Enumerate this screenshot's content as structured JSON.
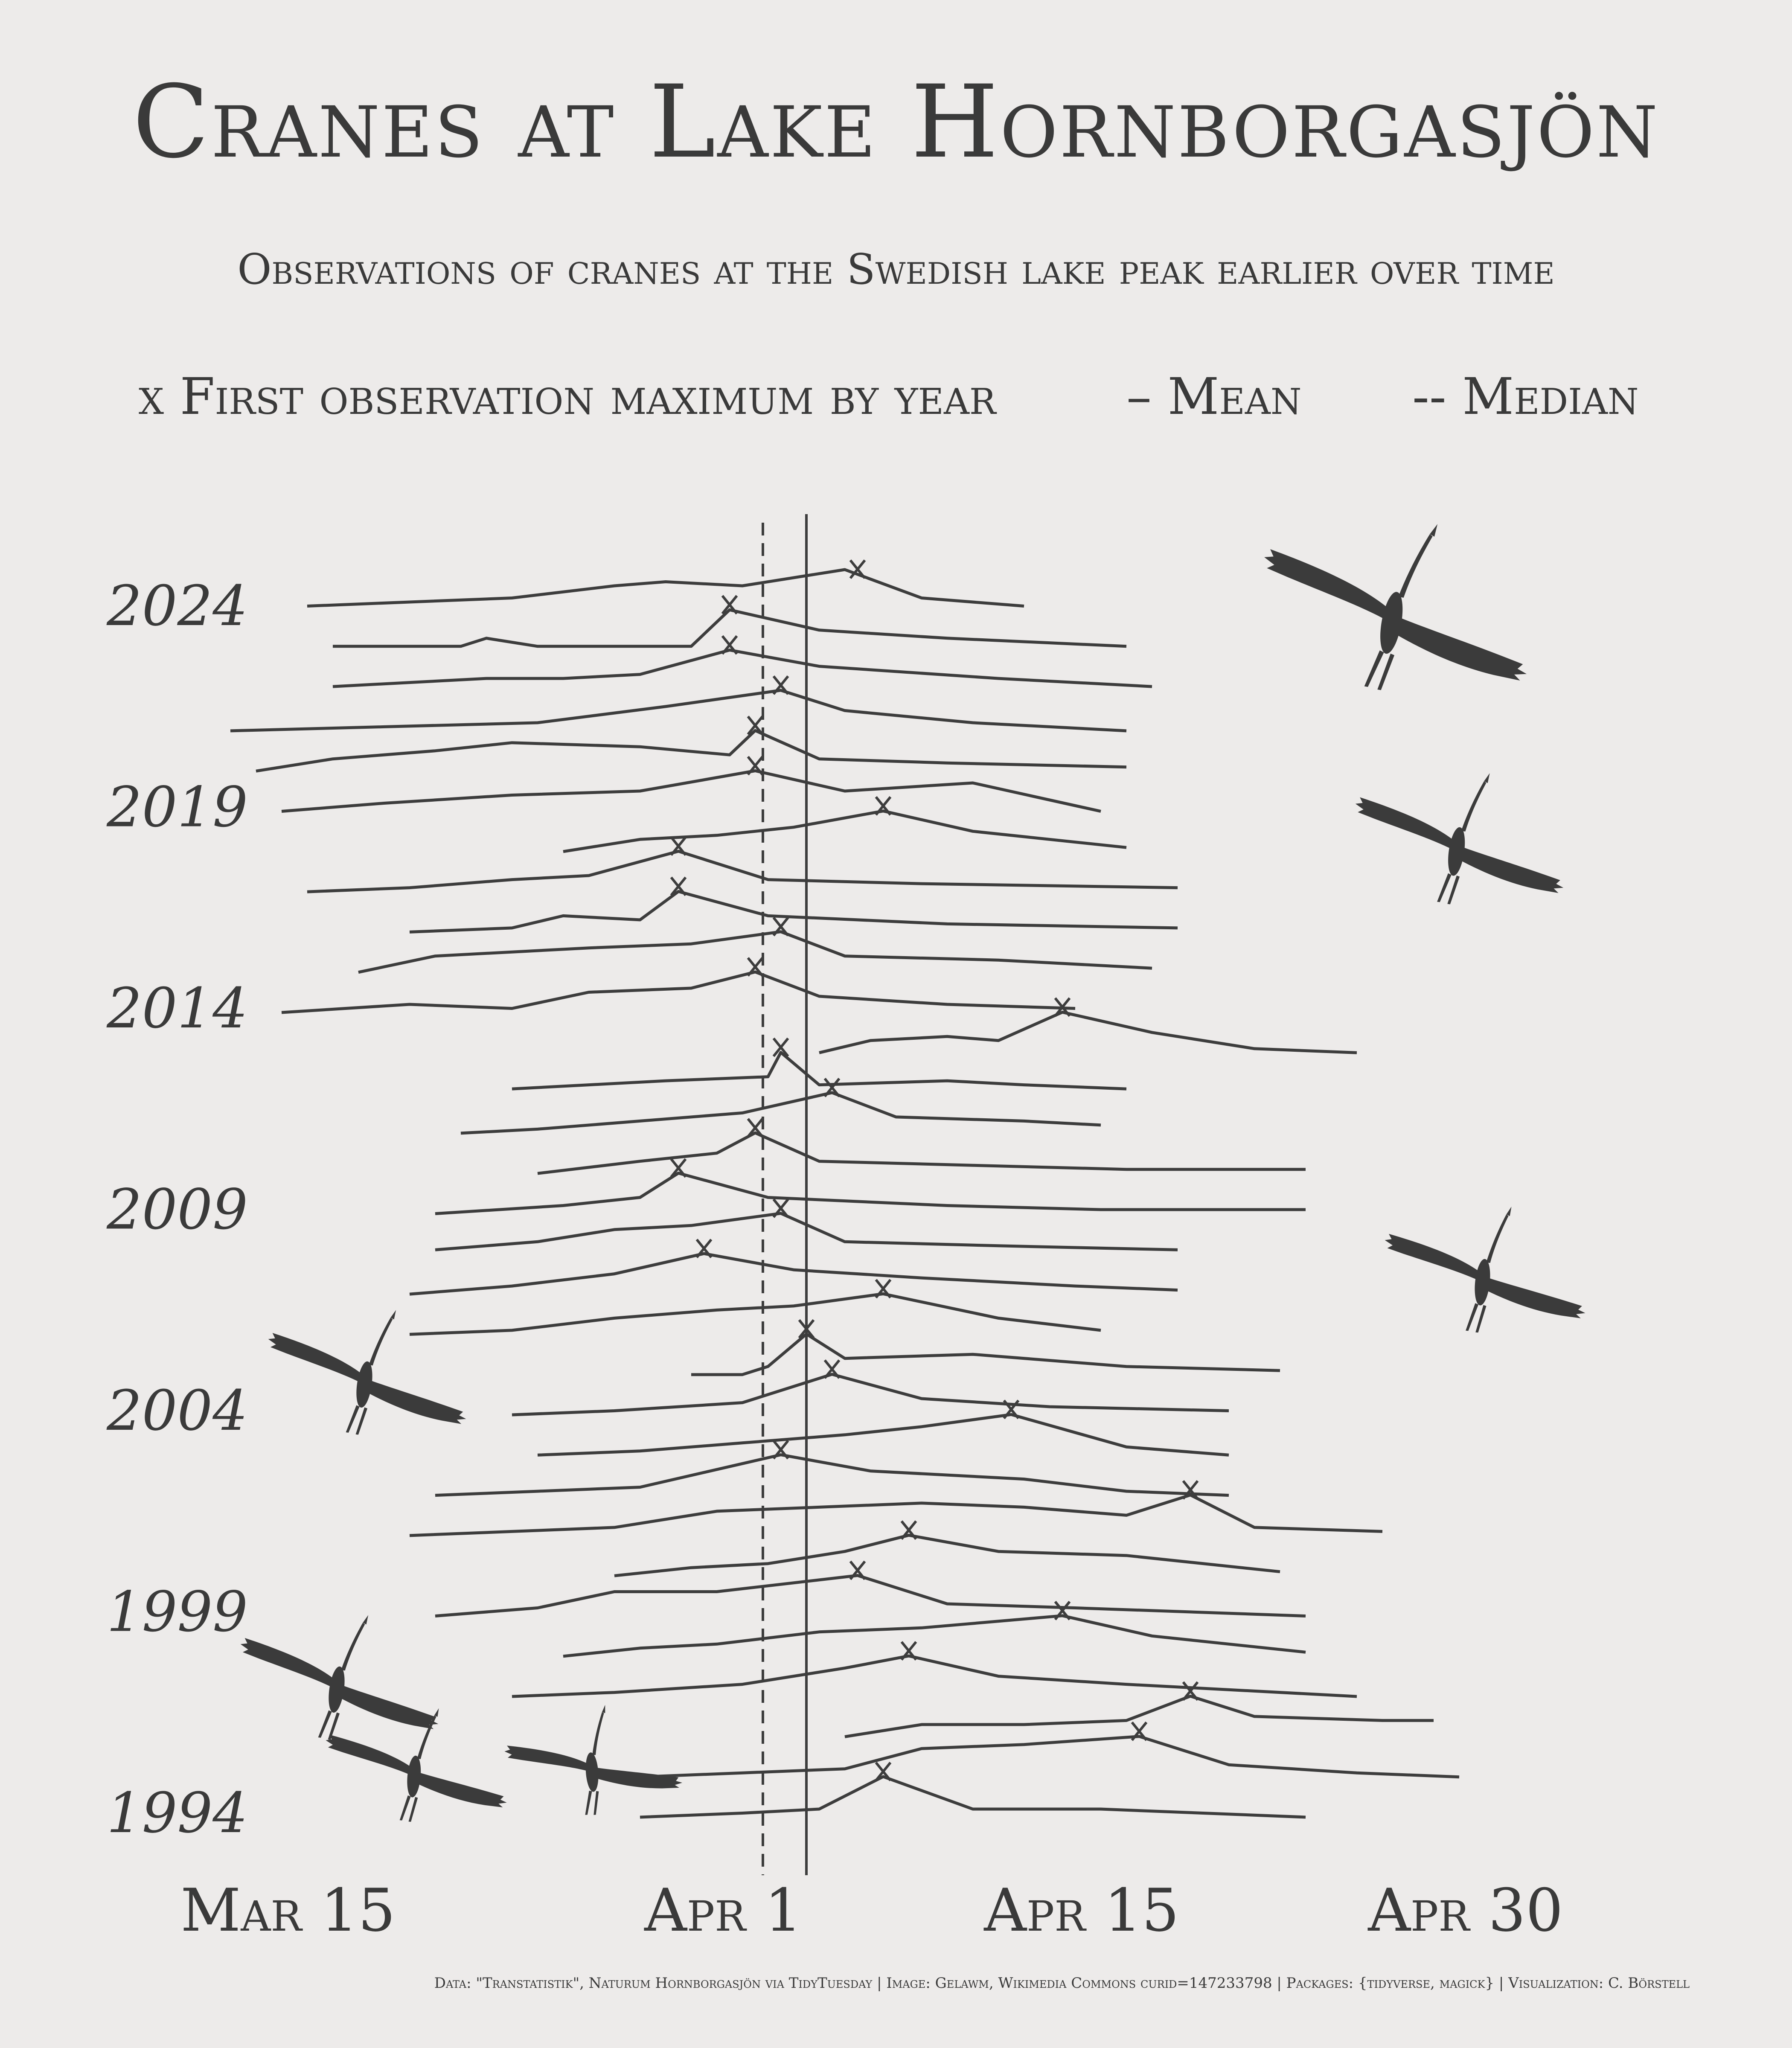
{
  "title": "Cranes at Lake Hornborgasjön",
  "subtitle": "Observations of cranes at the Swedish lake peak earlier over time",
  "legend": {
    "peak": "x First observation maximum by year",
    "mean": "– Mean",
    "median": "-- Median"
  },
  "caption": "Data: \"Transtatistik\", Naturum Hornborgasjön via TidyTuesday | Image: Gelawm, Wikimedia Commons curid=147233798 | Packages: {tidyverse, magick} | Visualization: C. Börstell",
  "colors": {
    "background": "#edebea",
    "ink": "#3d3d3d"
  },
  "chart_data": {
    "type": "line",
    "xlabel": "",
    "ylabel": "",
    "x_unit": "days after March 15",
    "x_ticks": [
      {
        "label": "Mar 15",
        "day": 0
      },
      {
        "label": "Apr 1",
        "day": 17
      },
      {
        "label": "Apr 15",
        "day": 31
      },
      {
        "label": "Apr 30",
        "day": 46
      }
    ],
    "y_ticks": [
      "1994",
      "1999",
      "2004",
      "2009",
      "2014",
      "2019",
      "2024"
    ],
    "mean_day": 22.5,
    "median_day": 20.8,
    "series": [
      {
        "year": 2024,
        "peak": 24.5,
        "points": [
          [
            3,
            0.1
          ],
          [
            7,
            0.2
          ],
          [
            11,
            0.3
          ],
          [
            15,
            0.6
          ],
          [
            17,
            0.7
          ],
          [
            20,
            0.6
          ],
          [
            24,
            1.0
          ],
          [
            27,
            0.3
          ],
          [
            31,
            0.1
          ]
        ]
      },
      {
        "year": 2023,
        "peak": 19.5,
        "points": [
          [
            4,
            0.1
          ],
          [
            9,
            0.1
          ],
          [
            10,
            0.3
          ],
          [
            12,
            0.1
          ],
          [
            15,
            0.1
          ],
          [
            18,
            0.1
          ],
          [
            19.5,
            1.0
          ],
          [
            23,
            0.5
          ],
          [
            28,
            0.3
          ],
          [
            35,
            0.1
          ]
        ]
      },
      {
        "year": 2022,
        "peak": 19.5,
        "points": [
          [
            4,
            0.1
          ],
          [
            7,
            0.2
          ],
          [
            10,
            0.3
          ],
          [
            13,
            0.3
          ],
          [
            16,
            0.4
          ],
          [
            19.5,
            1.0
          ],
          [
            23,
            0.6
          ],
          [
            30,
            0.3
          ],
          [
            36,
            0.1
          ]
        ]
      },
      {
        "year": 2021,
        "peak": 21.5,
        "points": [
          [
            0,
            0.0
          ],
          [
            6,
            0.1
          ],
          [
            12,
            0.2
          ],
          [
            17,
            0.6
          ],
          [
            21.5,
            1.0
          ],
          [
            24,
            0.5
          ],
          [
            29,
            0.2
          ],
          [
            35,
            0.0
          ]
        ]
      },
      {
        "year": 2020,
        "peak": 20.5,
        "points": [
          [
            1,
            0.0
          ],
          [
            4,
            0.3
          ],
          [
            8,
            0.5
          ],
          [
            11,
            0.7
          ],
          [
            16,
            0.6
          ],
          [
            19.5,
            0.4
          ],
          [
            20.5,
            1.0
          ],
          [
            23,
            0.3
          ],
          [
            28,
            0.2
          ],
          [
            35,
            0.1
          ]
        ]
      },
      {
        "year": 2019,
        "peak": 20.5,
        "points": [
          [
            2,
            0.0
          ],
          [
            6,
            0.2
          ],
          [
            11,
            0.4
          ],
          [
            16,
            0.5
          ],
          [
            20.5,
            1.0
          ],
          [
            24,
            0.5
          ],
          [
            29,
            0.7
          ],
          [
            34,
            0.0
          ]
        ]
      },
      {
        "year": 2018,
        "peak": 25.5,
        "points": [
          [
            13,
            0.0
          ],
          [
            16,
            0.3
          ],
          [
            19,
            0.4
          ],
          [
            22,
            0.6
          ],
          [
            25.5,
            1.0
          ],
          [
            29,
            0.5
          ],
          [
            35,
            0.1
          ]
        ]
      },
      {
        "year": 2017,
        "peak": 17.5,
        "points": [
          [
            3,
            0.0
          ],
          [
            7,
            0.1
          ],
          [
            11,
            0.3
          ],
          [
            14,
            0.4
          ],
          [
            17.5,
            1.0
          ],
          [
            21,
            0.3
          ],
          [
            27,
            0.2
          ],
          [
            37,
            0.1
          ]
        ]
      },
      {
        "year": 2016,
        "peak": 17.5,
        "points": [
          [
            7,
            0.0
          ],
          [
            11,
            0.1
          ],
          [
            13,
            0.4
          ],
          [
            16,
            0.3
          ],
          [
            17.5,
            1.0
          ],
          [
            21,
            0.4
          ],
          [
            28,
            0.2
          ],
          [
            37,
            0.1
          ]
        ]
      },
      {
        "year": 2015,
        "peak": 21.5,
        "points": [
          [
            5,
            0.0
          ],
          [
            8,
            0.4
          ],
          [
            11,
            0.5
          ],
          [
            14,
            0.6
          ],
          [
            18,
            0.7
          ],
          [
            21.5,
            1.0
          ],
          [
            24,
            0.4
          ],
          [
            30,
            0.3
          ],
          [
            36,
            0.1
          ]
        ]
      },
      {
        "year": 2014,
        "peak": 20.5,
        "points": [
          [
            2,
            0.0
          ],
          [
            7,
            0.2
          ],
          [
            11,
            0.1
          ],
          [
            14,
            0.5
          ],
          [
            18,
            0.6
          ],
          [
            20.5,
            1.0
          ],
          [
            23,
            0.4
          ],
          [
            28,
            0.2
          ],
          [
            33,
            0.1
          ]
        ]
      },
      {
        "year": 2013,
        "peak": 32.5,
        "points": [
          [
            23,
            0.0
          ],
          [
            25,
            0.3
          ],
          [
            28,
            0.4
          ],
          [
            30,
            0.3
          ],
          [
            32.5,
            1.0
          ],
          [
            36,
            0.5
          ],
          [
            40,
            0.1
          ],
          [
            44,
            0.0
          ]
        ]
      },
      {
        "year": 2012,
        "peak": 21.5,
        "points": [
          [
            11,
            0.1
          ],
          [
            14,
            0.2
          ],
          [
            17,
            0.3
          ],
          [
            21,
            0.4
          ],
          [
            21.5,
            1.0
          ],
          [
            23,
            0.2
          ],
          [
            28,
            0.3
          ],
          [
            31,
            0.2
          ],
          [
            35,
            0.1
          ]
        ]
      },
      {
        "year": 2011,
        "peak": 23.5,
        "points": [
          [
            9,
            0.0
          ],
          [
            12,
            0.1
          ],
          [
            16,
            0.3
          ],
          [
            20,
            0.5
          ],
          [
            23.5,
            1.0
          ],
          [
            26,
            0.4
          ],
          [
            31,
            0.3
          ],
          [
            34,
            0.2
          ]
        ]
      },
      {
        "year": 2010,
        "peak": 20.5,
        "points": [
          [
            12,
            0.0
          ],
          [
            16,
            0.3
          ],
          [
            19,
            0.5
          ],
          [
            20.5,
            1.0
          ],
          [
            23,
            0.3
          ],
          [
            29,
            0.2
          ],
          [
            35,
            0.1
          ],
          [
            42,
            0.1
          ]
        ]
      },
      {
        "year": 2009,
        "peak": 17.5,
        "points": [
          [
            8,
            0.0
          ],
          [
            13,
            0.2
          ],
          [
            16,
            0.4
          ],
          [
            17.5,
            1.0
          ],
          [
            21,
            0.4
          ],
          [
            28,
            0.2
          ],
          [
            34,
            0.1
          ],
          [
            42,
            0.1
          ]
        ]
      },
      {
        "year": 2008,
        "peak": 21.5,
        "points": [
          [
            8,
            0.1
          ],
          [
            12,
            0.3
          ],
          [
            15,
            0.6
          ],
          [
            18,
            0.7
          ],
          [
            21.5,
            1.0
          ],
          [
            24,
            0.3
          ],
          [
            30,
            0.2
          ],
          [
            37,
            0.1
          ]
        ]
      },
      {
        "year": 2007,
        "peak": 18.5,
        "points": [
          [
            7,
            0.0
          ],
          [
            11,
            0.2
          ],
          [
            15,
            0.5
          ],
          [
            18.5,
            1.0
          ],
          [
            22,
            0.6
          ],
          [
            27,
            0.4
          ],
          [
            33,
            0.2
          ],
          [
            37,
            0.1
          ]
        ]
      },
      {
        "year": 2006,
        "peak": 25.5,
        "points": [
          [
            7,
            0.0
          ],
          [
            11,
            0.1
          ],
          [
            15,
            0.4
          ],
          [
            19,
            0.6
          ],
          [
            22,
            0.7
          ],
          [
            25.5,
            1.0
          ],
          [
            30,
            0.4
          ],
          [
            34,
            0.1
          ]
        ]
      },
      {
        "year": 2005,
        "peak": 22.5,
        "points": [
          [
            18,
            0.0
          ],
          [
            20,
            0.0
          ],
          [
            21,
            0.2
          ],
          [
            22.5,
            1.0
          ],
          [
            24,
            0.4
          ],
          [
            29,
            0.5
          ],
          [
            35,
            0.2
          ],
          [
            41,
            0.1
          ]
        ]
      },
      {
        "year": 2004,
        "peak": 23.5,
        "points": [
          [
            11,
            0.0
          ],
          [
            15,
            0.1
          ],
          [
            20,
            0.3
          ],
          [
            23.5,
            1.0
          ],
          [
            27,
            0.4
          ],
          [
            32,
            0.2
          ],
          [
            39,
            0.1
          ]
        ]
      },
      {
        "year": 2003,
        "peak": 30.5,
        "points": [
          [
            12,
            0.0
          ],
          [
            16,
            0.1
          ],
          [
            20,
            0.3
          ],
          [
            24,
            0.5
          ],
          [
            27,
            0.7
          ],
          [
            30.5,
            1.0
          ],
          [
            35,
            0.2
          ],
          [
            39,
            0.0
          ]
        ]
      },
      {
        "year": 2002,
        "peak": 21.5,
        "points": [
          [
            8,
            0.0
          ],
          [
            12,
            0.1
          ],
          [
            16,
            0.2
          ],
          [
            21.5,
            1.0
          ],
          [
            25,
            0.6
          ],
          [
            31,
            0.4
          ],
          [
            35,
            0.1
          ],
          [
            39,
            0.0
          ]
        ]
      },
      {
        "year": 2001,
        "peak": 37.5,
        "points": [
          [
            7,
            0.0
          ],
          [
            11,
            0.1
          ],
          [
            15,
            0.2
          ],
          [
            19,
            0.6
          ],
          [
            23,
            0.7
          ],
          [
            27,
            0.8
          ],
          [
            31,
            0.7
          ],
          [
            35,
            0.5
          ],
          [
            37.5,
            1.0
          ],
          [
            40,
            0.2
          ],
          [
            45,
            0.1
          ]
        ]
      },
      {
        "year": 2000,
        "peak": 26.5,
        "points": [
          [
            15,
            0.0
          ],
          [
            18,
            0.2
          ],
          [
            21,
            0.3
          ],
          [
            24,
            0.6
          ],
          [
            26.5,
            1.0
          ],
          [
            30,
            0.6
          ],
          [
            35,
            0.5
          ],
          [
            41,
            0.1
          ]
        ]
      },
      {
        "year": 1999,
        "peak": 24.5,
        "points": [
          [
            8,
            0.0
          ],
          [
            12,
            0.2
          ],
          [
            15,
            0.6
          ],
          [
            19,
            0.6
          ],
          [
            24.5,
            1.0
          ],
          [
            28,
            0.3
          ],
          [
            33,
            0.2
          ],
          [
            42,
            0.0
          ]
        ]
      },
      {
        "year": 1998,
        "peak": 32.5,
        "points": [
          [
            13,
            0.0
          ],
          [
            16,
            0.2
          ],
          [
            19,
            0.3
          ],
          [
            23,
            0.6
          ],
          [
            27,
            0.7
          ],
          [
            32.5,
            1.0
          ],
          [
            36,
            0.5
          ],
          [
            42,
            0.1
          ]
        ]
      },
      {
        "year": 1997,
        "peak": 26.5,
        "points": [
          [
            11,
            0.0
          ],
          [
            15,
            0.1
          ],
          [
            20,
            0.3
          ],
          [
            24,
            0.7
          ],
          [
            26.5,
            1.0
          ],
          [
            30,
            0.5
          ],
          [
            35,
            0.3
          ],
          [
            44,
            0.0
          ]
        ]
      },
      {
        "year": 1996,
        "peak": 37.5,
        "points": [
          [
            24,
            0.0
          ],
          [
            27,
            0.3
          ],
          [
            31,
            0.3
          ],
          [
            35,
            0.4
          ],
          [
            37.5,
            1.0
          ],
          [
            40,
            0.5
          ],
          [
            45,
            0.4
          ],
          [
            47,
            0.4
          ]
        ]
      },
      {
        "year": 1995,
        "peak": 35.5,
        "points": [
          [
            16,
            0.0
          ],
          [
            20,
            0.1
          ],
          [
            24,
            0.2
          ],
          [
            27,
            0.7
          ],
          [
            31,
            0.8
          ],
          [
            35.5,
            1.0
          ],
          [
            39,
            0.3
          ],
          [
            44,
            0.1
          ],
          [
            48,
            0.0
          ]
        ]
      },
      {
        "year": 1994,
        "peak": 25.5,
        "points": [
          [
            16,
            0.0
          ],
          [
            20,
            0.1
          ],
          [
            23,
            0.2
          ],
          [
            25.5,
            1.0
          ],
          [
            29,
            0.2
          ],
          [
            34,
            0.2
          ],
          [
            38,
            0.1
          ],
          [
            42,
            0.0
          ]
        ]
      }
    ]
  }
}
